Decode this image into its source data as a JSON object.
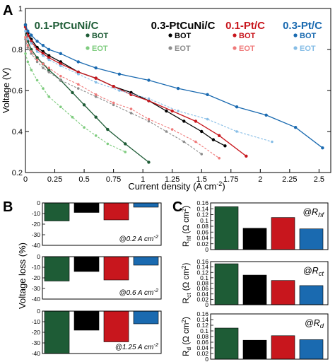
{
  "colors": {
    "ptcuni01": "#1e5c36",
    "ptcuni03": "#000000",
    "pt01": "#c8161d",
    "pt03": "#1a6ab0",
    "ptcuni01_eot": "#7fcc7f",
    "ptcuni03_eot": "#8c8c8c",
    "pt01_eot": "#ef7a7a",
    "pt03_eot": "#86bde6"
  },
  "panels": {
    "a": "A",
    "b": "B",
    "c": "C"
  },
  "chart_data": [
    {
      "type": "line",
      "panel": "A",
      "xlabel": "Current density (A cm",
      "xlabel_sup": "-2",
      "xlabel_end": ")",
      "ylabel": "Voltage (V)",
      "xlim": [
        0,
        2.6
      ],
      "ylim": [
        0.2,
        1.0
      ],
      "xticks": [
        "0",
        "0.25",
        "0.5",
        "0.75",
        "1",
        "1.25",
        "1.5",
        "1.75",
        "2",
        "2.25",
        "2.5"
      ],
      "yticks": [
        "0.2",
        "0.4",
        "0.6",
        "0.8",
        "1"
      ],
      "legend": {
        "categories": [
          "0.1-PtCuNi/C",
          "0.3-PtCuNi/C",
          "0.1-Pt/C",
          "0.3-Pt/C"
        ],
        "bot": "BOT",
        "eot": "EOT"
      },
      "series": [
        {
          "name": "BOT",
          "group": "0.1-PtCuNi/C",
          "color": "ptcuni01",
          "dash": false,
          "x": [
            0,
            0.01,
            0.02,
            0.05,
            0.1,
            0.15,
            0.2,
            0.3,
            0.4,
            0.5,
            0.6,
            0.7,
            0.85,
            1.05
          ],
          "y": [
            0.92,
            0.87,
            0.84,
            0.8,
            0.76,
            0.73,
            0.7,
            0.65,
            0.59,
            0.53,
            0.47,
            0.41,
            0.34,
            0.25
          ]
        },
        {
          "name": "EOT",
          "group": "0.1-PtCuNi/C",
          "color": "ptcuni01_eot",
          "dash": true,
          "x": [
            0,
            0.02,
            0.05,
            0.1,
            0.15,
            0.2,
            0.3,
            0.4,
            0.5,
            0.6,
            0.7,
            0.85
          ],
          "y": [
            0.78,
            0.74,
            0.7,
            0.65,
            0.61,
            0.57,
            0.52,
            0.47,
            0.42,
            0.38,
            0.34,
            0.3
          ]
        },
        {
          "name": "BOT",
          "group": "0.3-PtCuNi/C",
          "color": "ptcuni03",
          "dash": false,
          "x": [
            0,
            0.02,
            0.05,
            0.1,
            0.15,
            0.2,
            0.3,
            0.45,
            0.6,
            0.75,
            0.9,
            1.05,
            1.2,
            1.35,
            1.5,
            1.6,
            1.7
          ],
          "y": [
            0.92,
            0.88,
            0.85,
            0.81,
            0.79,
            0.77,
            0.74,
            0.69,
            0.66,
            0.62,
            0.59,
            0.55,
            0.5,
            0.45,
            0.4,
            0.36,
            0.33
          ]
        },
        {
          "name": "EOT",
          "group": "0.3-PtCuNi/C",
          "color": "ptcuni03_eot",
          "dash": true,
          "x": [
            0,
            0.02,
            0.05,
            0.1,
            0.15,
            0.2,
            0.3,
            0.45,
            0.6,
            0.75,
            0.9,
            1.05,
            1.2,
            1.35,
            1.5
          ],
          "y": [
            0.85,
            0.81,
            0.78,
            0.74,
            0.71,
            0.69,
            0.65,
            0.61,
            0.57,
            0.53,
            0.49,
            0.45,
            0.4,
            0.35,
            0.29
          ]
        },
        {
          "name": "BOT",
          "group": "0.1-Pt/C",
          "color": "pt01",
          "dash": false,
          "x": [
            0,
            0.02,
            0.05,
            0.1,
            0.15,
            0.2,
            0.3,
            0.45,
            0.6,
            0.75,
            0.9,
            1.05,
            1.25,
            1.45,
            1.65,
            1.88
          ],
          "y": [
            0.91,
            0.87,
            0.84,
            0.8,
            0.78,
            0.76,
            0.73,
            0.69,
            0.66,
            0.62,
            0.58,
            0.55,
            0.5,
            0.45,
            0.38,
            0.28
          ]
        },
        {
          "name": "EOT",
          "group": "0.1-Pt/C",
          "color": "pt01_eot",
          "dash": true,
          "x": [
            0,
            0.02,
            0.05,
            0.1,
            0.15,
            0.2,
            0.3,
            0.45,
            0.6,
            0.75,
            0.9,
            1.05,
            1.25,
            1.45,
            1.65
          ],
          "y": [
            0.86,
            0.82,
            0.79,
            0.75,
            0.73,
            0.71,
            0.67,
            0.63,
            0.58,
            0.54,
            0.51,
            0.46,
            0.41,
            0.35,
            0.27
          ]
        },
        {
          "name": "BOT",
          "group": "0.3-Pt/C",
          "color": "pt03",
          "dash": false,
          "x": [
            0,
            0.02,
            0.05,
            0.1,
            0.15,
            0.2,
            0.3,
            0.45,
            0.6,
            0.8,
            1.05,
            1.3,
            1.55,
            1.8,
            2.05,
            2.3,
            2.53
          ],
          "y": [
            0.92,
            0.89,
            0.87,
            0.84,
            0.82,
            0.8,
            0.78,
            0.74,
            0.71,
            0.68,
            0.65,
            0.61,
            0.58,
            0.52,
            0.48,
            0.42,
            0.32
          ]
        },
        {
          "name": "EOT",
          "group": "0.3-Pt/C",
          "color": "pt03_eot",
          "dash": true,
          "x": [
            0,
            0.02,
            0.05,
            0.1,
            0.15,
            0.2,
            0.3,
            0.45,
            0.6,
            0.8,
            1.05,
            1.3,
            1.55,
            1.8,
            2.1
          ],
          "y": [
            0.89,
            0.85,
            0.83,
            0.79,
            0.77,
            0.75,
            0.72,
            0.68,
            0.64,
            0.6,
            0.56,
            0.5,
            0.46,
            0.4,
            0.35
          ]
        }
      ]
    },
    {
      "type": "bar",
      "panel": "B",
      "ylabel": "Voltage loss (%)",
      "categories": [
        "0.1-PtCuNi/C",
        "0.3-PtCuNi/C",
        "0.1-Pt/C",
        "0.3-Pt/C"
      ],
      "subplots": [
        {
          "note": "@0.2 A cm",
          "note_sup": "-2",
          "ylim": [
            -40,
            0
          ],
          "yticks": [
            "0",
            "-10",
            "-20",
            "-30",
            "-40"
          ],
          "values": [
            -17,
            -9,
            -16,
            -4
          ]
        },
        {
          "note": "@0.6 A cm",
          "note_sup": "-2",
          "ylim": [
            -40,
            0
          ],
          "yticks": [
            "0",
            "-10",
            "-20",
            "-30",
            "-40"
          ],
          "values": [
            -23,
            -14,
            -22,
            -8
          ]
        },
        {
          "note": "@1.25 A cm",
          "note_sup": "-2",
          "ylim": [
            -40,
            0
          ],
          "yticks": [
            "0",
            "-10",
            "-20",
            "-30",
            "-40"
          ],
          "values": [
            -40,
            -18,
            -29,
            -12
          ]
        }
      ]
    },
    {
      "type": "bar",
      "panel": "C",
      "categories": [
        "0.1-PtCuNi/C",
        "0.3-PtCuNi/C",
        "0.1-Pt/C",
        "0.3-Pt/C"
      ],
      "subplots": [
        {
          "ylabel_main": "R",
          "ylabel_sub": "hf",
          "ylabel_unit": " (Ω cm",
          "ylabel_unit_sup": "2",
          "ylabel_end": ")",
          "note_at": "@R",
          "note_sub": "hf",
          "ylim": [
            0,
            0.16
          ],
          "yticks": [
            "0",
            "0.02",
            "0.04",
            "0.06",
            "0.08",
            "0.1",
            "0.12",
            "0.14",
            "0.16"
          ],
          "values": [
            0.147,
            0.073,
            0.11,
            0.071
          ]
        },
        {
          "ylabel_main": "R",
          "ylabel_sub": "ct",
          "ylabel_unit": " (Ω cm",
          "ylabel_unit_sup": "2",
          "ylabel_end": ")",
          "note_at": "@R",
          "note_sub": "ct",
          "ylim": [
            0,
            0.16
          ],
          "yticks": [
            "0",
            "0.02",
            "0.04",
            "0.06",
            "0.08",
            "0.1",
            "0.12",
            "0.14",
            "0.16"
          ],
          "values": [
            0.152,
            0.11,
            0.09,
            0.071
          ]
        },
        {
          "ylabel_main": "R",
          "ylabel_sub": "d",
          "ylabel_unit": " (Ω cm",
          "ylabel_unit_sup": "2",
          "ylabel_end": ")",
          "note_at": "@R",
          "note_sub": "d",
          "ylim": [
            0,
            0.16
          ],
          "yticks": [
            "0",
            "0.02",
            "0.04",
            "0.06",
            "0.08",
            "0.1",
            "0.12",
            "0.14",
            "0.16"
          ],
          "values": [
            0.11,
            0.067,
            0.083,
            0.069
          ]
        }
      ]
    }
  ]
}
